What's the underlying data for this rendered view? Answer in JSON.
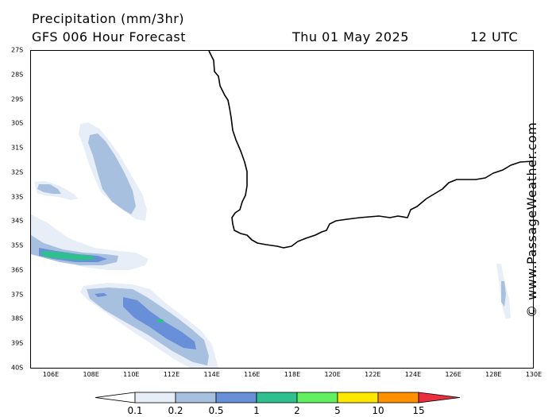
{
  "header": {
    "title": "Precipitation (mm/3hr)",
    "forecast": "GFS 006 Hour Forecast",
    "date": "Thu 01 May 2025",
    "time": "12 UTC"
  },
  "watermark": "© www.PassageWeather.com",
  "lat_labels": [
    "27S",
    "28S",
    "29S",
    "30S",
    "31S",
    "32S",
    "33S",
    "34S",
    "35S",
    "36S",
    "37S",
    "38S",
    "39S",
    "40S"
  ],
  "lon_labels": [
    "106E",
    "108E",
    "110E",
    "112E",
    "114E",
    "116E",
    "118E",
    "120E",
    "122E",
    "124E",
    "126E",
    "128E",
    "130E"
  ],
  "legend": {
    "labels": [
      "0.1",
      "0.2",
      "0.5",
      "1",
      "2",
      "5",
      "10",
      "15"
    ],
    "colors": [
      "#e8eef8",
      "#a8c0e0",
      "#6890d8",
      "#30c090",
      "#60f060",
      "#ffe800",
      "#ff9000",
      "#e83040"
    ]
  }
}
